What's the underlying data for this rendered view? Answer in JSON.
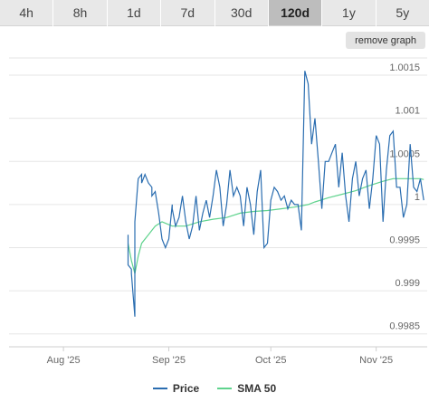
{
  "range_tabs": [
    {
      "label": "4h",
      "active": false
    },
    {
      "label": "8h",
      "active": false
    },
    {
      "label": "1d",
      "active": false
    },
    {
      "label": "7d",
      "active": false
    },
    {
      "label": "30d",
      "active": false
    },
    {
      "label": "120d",
      "active": true
    },
    {
      "label": "1y",
      "active": false
    },
    {
      "label": "5y",
      "active": false
    }
  ],
  "remove_graph_label": "remove graph",
  "colors": {
    "price": "#2a6db0",
    "sma": "#5fd38d",
    "grid": "#e6e6e6",
    "tick_text": "#666666"
  },
  "chart_data": {
    "type": "line",
    "xlabel": "",
    "ylabel": "",
    "x_ticks": [
      {
        "label": "Aug '25",
        "date": "2025-08-01"
      },
      {
        "label": "Sep '25",
        "date": "2025-09-01"
      },
      {
        "label": "Oct '25",
        "date": "2025-10-01"
      },
      {
        "label": "Nov '25",
        "date": "2025-11-01"
      }
    ],
    "xlim": [
      "2025-07-16",
      "2025-11-16"
    ],
    "y_ticks": [
      0.9985,
      0.999,
      0.9995,
      1,
      1.0005,
      1.001,
      1.0015
    ],
    "y_tick_labels": [
      "0.9985",
      "0.999",
      "0.9995",
      "1",
      "1.0005",
      "1.001",
      "1.0015"
    ],
    "ylim": [
      0.99835,
      1.0017
    ],
    "grid": true,
    "legend": "bottom-center",
    "series": [
      {
        "name": "Price",
        "x": [
          "2025-08-20",
          "2025-08-20",
          "2025-08-21",
          "2025-08-21",
          "2025-08-22",
          "2025-08-22",
          "2025-08-23",
          "2025-08-24",
          "2025-08-24",
          "2025-08-25",
          "2025-08-26",
          "2025-08-27",
          "2025-08-27",
          "2025-08-28",
          "2025-08-29",
          "2025-08-30",
          "2025-08-31",
          "2025-09-01",
          "2025-09-02",
          "2025-09-02",
          "2025-09-03",
          "2025-09-04",
          "2025-09-05",
          "2025-09-06",
          "2025-09-07",
          "2025-09-08",
          "2025-09-09",
          "2025-09-10",
          "2025-09-11",
          "2025-09-12",
          "2025-09-13",
          "2025-09-14",
          "2025-09-15",
          "2025-09-16",
          "2025-09-17",
          "2025-09-18",
          "2025-09-19",
          "2025-09-20",
          "2025-09-21",
          "2025-09-22",
          "2025-09-23",
          "2025-09-24",
          "2025-09-25",
          "2025-09-26",
          "2025-09-27",
          "2025-09-28",
          "2025-09-29",
          "2025-09-30",
          "2025-10-01",
          "2025-10-02",
          "2025-10-03",
          "2025-10-04",
          "2025-10-05",
          "2025-10-06",
          "2025-10-07",
          "2025-10-08",
          "2025-10-09",
          "2025-10-10",
          "2025-10-11",
          "2025-10-12",
          "2025-10-13",
          "2025-10-14",
          "2025-10-15",
          "2025-10-16",
          "2025-10-17",
          "2025-10-18",
          "2025-10-19",
          "2025-10-20",
          "2025-10-21",
          "2025-10-22",
          "2025-10-23",
          "2025-10-24",
          "2025-10-25",
          "2025-10-26",
          "2025-10-27",
          "2025-10-28",
          "2025-10-29",
          "2025-10-30",
          "2025-10-31",
          "2025-11-01",
          "2025-11-02",
          "2025-11-03",
          "2025-11-04",
          "2025-11-05",
          "2025-11-06",
          "2025-11-07",
          "2025-11-08",
          "2025-11-09",
          "2025-11-10",
          "2025-11-11",
          "2025-11-12",
          "2025-11-13",
          "2025-11-14",
          "2025-11-15"
        ],
        "y": [
          0.99965,
          0.9993,
          0.99925,
          0.9992,
          0.9987,
          0.9998,
          1.0003,
          1.00035,
          1.00025,
          1.00035,
          1.00025,
          1.0002,
          1.0001,
          1.00015,
          0.9999,
          0.9996,
          0.9995,
          0.9996,
          1.0,
          0.99995,
          0.99975,
          0.99985,
          1.0001,
          0.9998,
          0.9996,
          0.99975,
          1.0001,
          0.9997,
          0.9999,
          1.00005,
          0.99985,
          1.0001,
          1.0004,
          1.0002,
          0.99975,
          1.0,
          1.0004,
          1.0001,
          1.0002,
          1.0001,
          0.99975,
          1.0002,
          1.0,
          0.99965,
          1.00015,
          1.0004,
          0.9995,
          0.99955,
          1.00005,
          1.0002,
          1.00015,
          1.00005,
          1.0001,
          0.99995,
          1.00005,
          1.0,
          1.0,
          0.9997,
          1.00155,
          1.0014,
          1.0007,
          1.001,
          1.0005,
          0.99995,
          1.0005,
          1.0005,
          1.0006,
          1.0007,
          1.0002,
          1.0006,
          1.0001,
          0.9998,
          1.0003,
          1.0005,
          1.0001,
          1.0003,
          1.0004,
          0.99995,
          1.0003,
          1.0008,
          1.0007,
          0.9998,
          1.0004,
          1.0008,
          1.00085,
          1.0002,
          1.0002,
          0.99985,
          1.0,
          1.0007,
          1.0002,
          1.00015,
          1.0003,
          1.00005
        ],
        "color": "#2a6db0"
      },
      {
        "name": "SMA 50",
        "x": [
          "2025-08-20",
          "2025-08-21",
          "2025-08-22",
          "2025-08-23",
          "2025-08-24",
          "2025-08-26",
          "2025-08-28",
          "2025-08-30",
          "2025-09-02",
          "2025-09-06",
          "2025-09-10",
          "2025-09-14",
          "2025-09-18",
          "2025-09-22",
          "2025-09-26",
          "2025-09-30",
          "2025-10-04",
          "2025-10-08",
          "2025-10-12",
          "2025-10-14",
          "2025-10-18",
          "2025-10-22",
          "2025-10-26",
          "2025-10-30",
          "2025-11-03",
          "2025-11-06",
          "2025-11-10",
          "2025-11-14",
          "2025-11-15"
        ],
        "y": [
          0.99955,
          0.99935,
          0.9992,
          0.9994,
          0.99955,
          0.99965,
          0.99975,
          0.9998,
          0.99975,
          0.99975,
          0.9998,
          0.99983,
          0.99985,
          0.9999,
          0.99992,
          0.99993,
          0.99995,
          0.99997,
          1.0,
          1.00003,
          1.00008,
          1.00012,
          1.00016,
          1.00022,
          1.00027,
          1.0003,
          1.0003,
          1.0003,
          1.00029
        ],
        "color": "#5fd38d"
      }
    ]
  }
}
